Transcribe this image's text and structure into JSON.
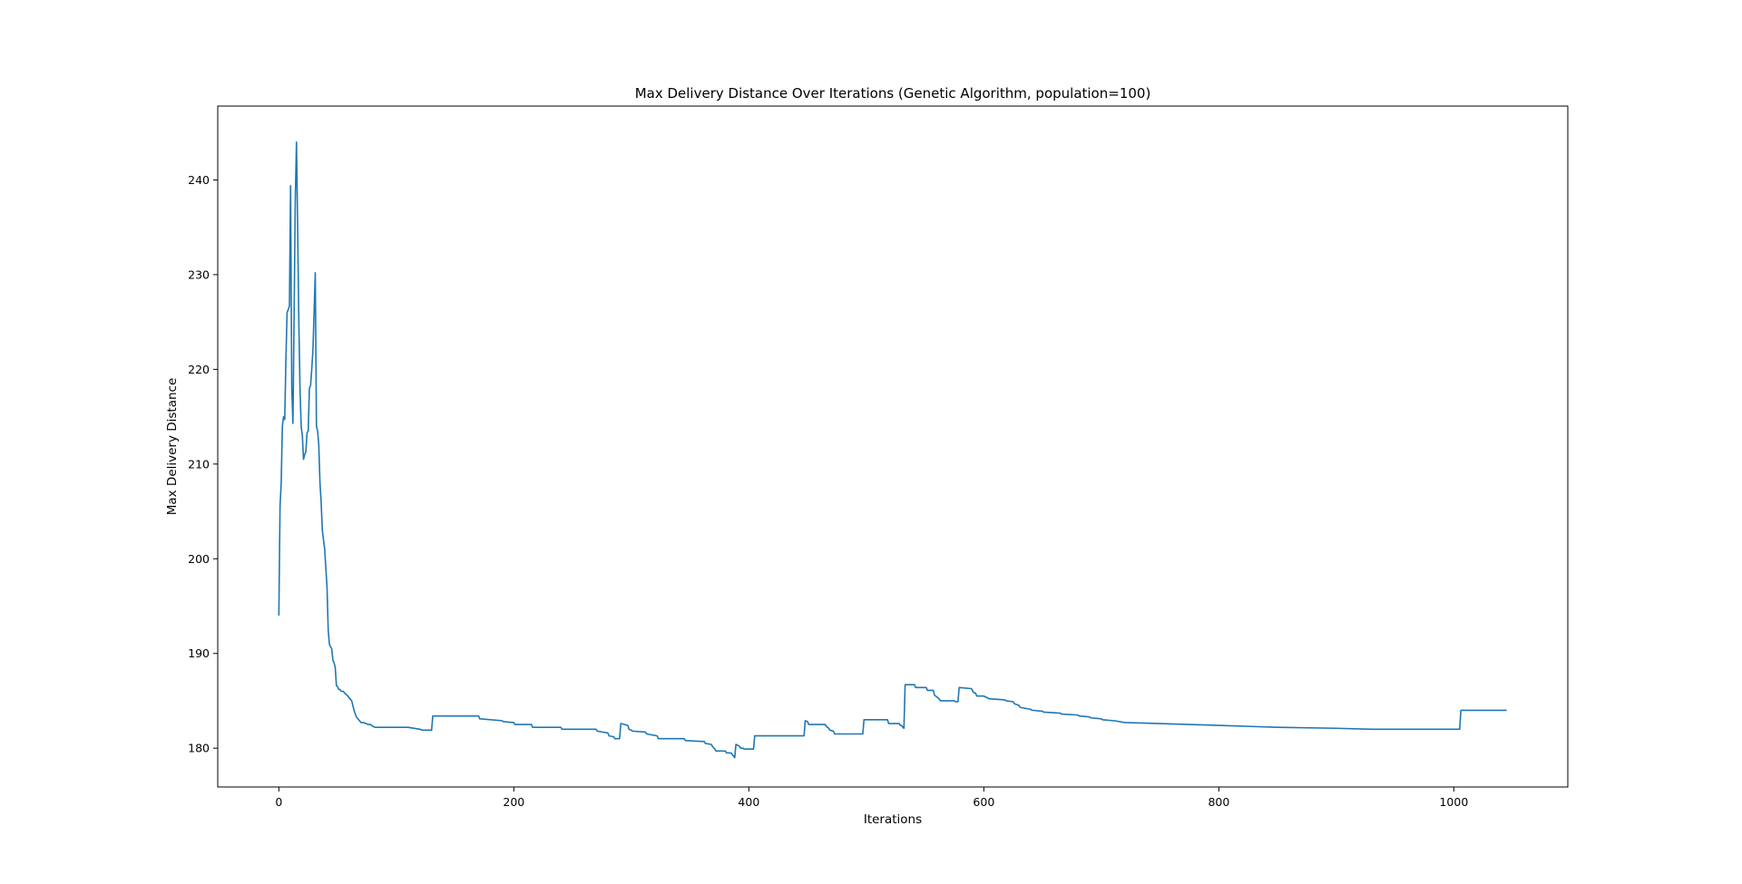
{
  "chart_data": {
    "type": "line",
    "title": "Max Delivery Distance Over Iterations (Genetic Algorithm, population=100)",
    "xlabel": "Iterations",
    "ylabel": "Max Delivery Distance",
    "xlim": [
      -52,
      1097
    ],
    "ylim": [
      175.9,
      247.8
    ],
    "xticks": [
      0,
      200,
      400,
      600,
      800,
      1000
    ],
    "yticks": [
      180,
      190,
      200,
      210,
      220,
      230,
      240
    ],
    "grid": false,
    "legend": "none",
    "series": [
      {
        "color": "#1f77b4",
        "x": [
          0,
          1,
          2,
          3,
          4,
          5,
          6,
          7,
          8,
          9,
          10,
          11,
          12,
          13,
          14,
          15,
          16,
          17,
          18,
          19,
          20,
          21,
          22,
          23,
          24,
          25,
          26,
          27,
          28,
          29,
          30,
          31,
          32,
          33,
          34,
          35,
          36,
          37,
          38,
          39,
          40,
          41,
          42,
          43,
          44,
          45,
          46,
          47,
          48,
          49,
          50,
          51,
          52,
          53,
          54,
          55,
          56,
          58,
          60,
          62,
          64,
          66,
          68,
          70,
          72,
          74,
          76,
          78,
          80,
          82,
          85,
          90,
          95,
          100,
          105,
          110,
          120,
          122,
          130,
          131,
          170,
          171,
          190,
          191,
          200,
          201,
          215,
          216,
          240,
          241,
          270,
          271,
          280,
          281,
          285,
          286,
          290,
          291,
          297,
          298,
          300,
          301,
          312,
          313,
          322,
          323,
          345,
          346,
          362,
          363,
          368,
          369,
          371,
          372,
          380,
          381,
          385,
          386,
          388,
          389,
          392,
          393,
          395,
          396,
          404,
          405,
          447,
          448,
          450,
          451,
          465,
          466,
          468,
          469,
          472,
          473,
          497,
          498,
          518,
          519,
          528,
          529,
          530,
          531,
          532,
          533,
          541,
          542,
          551,
          552,
          557,
          558,
          562,
          563,
          575,
          576,
          578,
          579,
          588,
          589,
          590,
          591,
          593,
          594,
          600,
          605,
          606,
          618,
          619,
          625,
          626,
          630,
          631,
          640,
          641,
          650,
          651,
          665,
          666,
          680,
          681,
          690,
          691,
          700,
          701,
          710,
          711,
          720,
          750,
          800,
          850,
          900,
          930,
          1005,
          1006,
          1008,
          1045
        ],
        "y": [
          194.0,
          205.5,
          208.0,
          214.0,
          215.0,
          214.7,
          221.0,
          226.0,
          226.3,
          226.7,
          239.4,
          218.0,
          214.3,
          226.0,
          238.0,
          244.0,
          235.0,
          225.0,
          218.0,
          214.0,
          213.0,
          210.5,
          211.0,
          211.3,
          213.3,
          213.5,
          218.0,
          218.3,
          220.0,
          222.0,
          226.0,
          230.2,
          214.0,
          213.5,
          212.0,
          208.0,
          206.0,
          203.0,
          202.0,
          201.0,
          199.0,
          197.0,
          192.5,
          191.0,
          190.7,
          190.5,
          189.3,
          189.0,
          188.5,
          186.6,
          186.5,
          186.2,
          186.2,
          186.0,
          186.0,
          186.0,
          185.8,
          185.6,
          185.3,
          185.0,
          184.0,
          183.3,
          183.0,
          182.7,
          182.7,
          182.6,
          182.5,
          182.5,
          182.3,
          182.2,
          182.2,
          182.2,
          182.2,
          182.2,
          182.2,
          182.2,
          182.0,
          181.9,
          181.9,
          183.4,
          183.4,
          183.1,
          182.9,
          182.8,
          182.7,
          182.5,
          182.5,
          182.2,
          182.2,
          182.0,
          182.0,
          181.8,
          181.6,
          181.3,
          181.2,
          181.0,
          181.0,
          182.6,
          182.4,
          182.0,
          181.9,
          181.8,
          181.7,
          181.5,
          181.3,
          181.0,
          181.0,
          180.8,
          180.7,
          180.5,
          180.4,
          180.2,
          179.9,
          179.7,
          179.7,
          179.5,
          179.5,
          179.3,
          179.0,
          180.4,
          180.2,
          180.0,
          180.0,
          179.9,
          179.9,
          181.3,
          181.3,
          182.9,
          182.8,
          182.5,
          182.5,
          182.3,
          182.1,
          181.9,
          181.8,
          181.5,
          181.5,
          183.0,
          183.0,
          182.6,
          182.6,
          182.4,
          182.4,
          182.2,
          182.1,
          186.7,
          186.7,
          186.4,
          186.4,
          186.1,
          186.1,
          185.6,
          185.2,
          185.0,
          185.0,
          184.9,
          184.9,
          186.4,
          186.3,
          186.3,
          186.2,
          185.9,
          185.8,
          185.5,
          185.5,
          185.2,
          185.2,
          185.1,
          185.0,
          184.9,
          184.7,
          184.5,
          184.3,
          184.1,
          184.0,
          183.9,
          183.8,
          183.7,
          183.6,
          183.5,
          183.4,
          183.3,
          183.2,
          183.1,
          183.0,
          182.9,
          182.9,
          182.7,
          182.6,
          182.4,
          182.2,
          182.1,
          182.0,
          182.0,
          184.0,
          184.0,
          184.0
        ]
      }
    ]
  }
}
